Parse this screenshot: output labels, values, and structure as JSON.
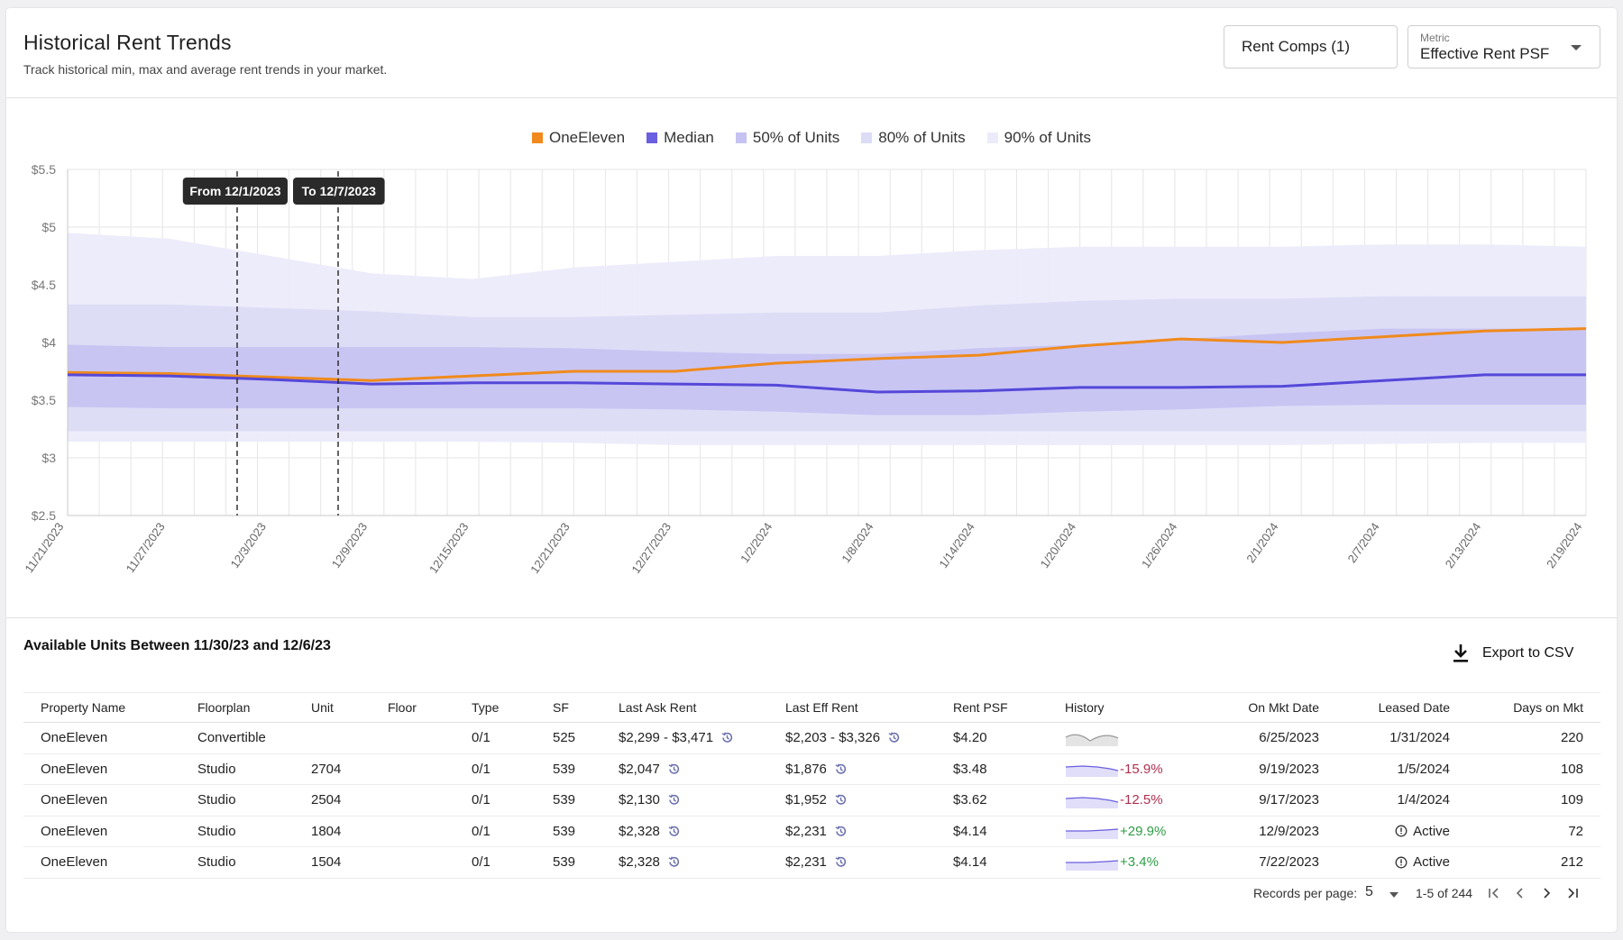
{
  "header": {
    "title": "Historical Rent Trends",
    "subtitle": "Track historical min, max and average rent trends in your market.",
    "rent_comps_label": "Rent Comps (1)",
    "metric_label": "Metric",
    "metric_value": "Effective Rent PSF"
  },
  "legend": [
    {
      "label": "OneEleven",
      "color": "#f08a1c"
    },
    {
      "label": "Median",
      "color": "#6a5fe0"
    },
    {
      "label": "50% of Units",
      "color": "#c6c3f2"
    },
    {
      "label": "80% of Units",
      "color": "#dddcf6"
    },
    {
      "label": "90% of Units",
      "color": "#ecebfb"
    }
  ],
  "markers": {
    "from_label": "From 12/1/2023",
    "to_label": "To 12/7/2023"
  },
  "chart_data": {
    "type": "area",
    "x_ticks": [
      "11/21/2023",
      "11/27/2023",
      "12/3/2023",
      "12/9/2023",
      "12/15/2023",
      "12/21/2023",
      "12/27/2023",
      "1/2/2024",
      "1/8/2024",
      "1/14/2024",
      "1/20/2024",
      "1/26/2024",
      "2/1/2024",
      "2/7/2024",
      "2/13/2024",
      "2/19/2024"
    ],
    "y_ticks": [
      "$5.5",
      "$5",
      "$4.5",
      "$4",
      "$3.5",
      "$3",
      "$2.5"
    ],
    "ylim": [
      2.5,
      5.5
    ],
    "x": [
      "11/21/2023",
      "11/27/2023",
      "12/3/2023",
      "12/9/2023",
      "12/15/2023",
      "12/21/2023",
      "12/27/2023",
      "1/2/2024",
      "1/8/2024",
      "1/14/2024",
      "1/20/2024",
      "1/26/2024",
      "2/1/2024",
      "2/7/2024",
      "2/13/2024",
      "2/19/2024"
    ],
    "series": [
      {
        "name": "OneEleven",
        "values": [
          3.74,
          3.73,
          3.7,
          3.67,
          3.71,
          3.75,
          3.75,
          3.82,
          3.86,
          3.89,
          3.97,
          4.03,
          4.0,
          4.05,
          4.1,
          4.12
        ]
      },
      {
        "name": "Median",
        "values": [
          3.72,
          3.71,
          3.68,
          3.64,
          3.65,
          3.65,
          3.64,
          3.63,
          3.57,
          3.58,
          3.61,
          3.61,
          3.62,
          3.67,
          3.72,
          3.72
        ]
      }
    ],
    "bands": [
      {
        "name": "90% of Units",
        "upper": [
          4.95,
          4.9,
          4.75,
          4.6,
          4.55,
          4.65,
          4.7,
          4.75,
          4.75,
          4.8,
          4.83,
          4.83,
          4.83,
          4.85,
          4.85,
          4.83
        ],
        "lower": [
          3.14,
          3.14,
          3.14,
          3.14,
          3.14,
          3.13,
          3.11,
          3.11,
          3.11,
          3.11,
          3.11,
          3.11,
          3.11,
          3.12,
          3.13,
          3.13
        ]
      },
      {
        "name": "80% of Units",
        "upper": [
          4.33,
          4.33,
          4.3,
          4.27,
          4.22,
          4.22,
          4.24,
          4.26,
          4.26,
          4.32,
          4.36,
          4.38,
          4.38,
          4.4,
          4.4,
          4.4
        ],
        "lower": [
          3.23,
          3.23,
          3.23,
          3.23,
          3.23,
          3.23,
          3.23,
          3.23,
          3.23,
          3.23,
          3.23,
          3.23,
          3.23,
          3.23,
          3.23,
          3.23
        ]
      },
      {
        "name": "50% of Units",
        "upper": [
          3.98,
          3.96,
          3.96,
          3.96,
          3.96,
          3.95,
          3.92,
          3.9,
          3.9,
          3.95,
          3.98,
          4.03,
          4.08,
          4.12,
          4.12,
          4.12
        ],
        "lower": [
          3.44,
          3.43,
          3.43,
          3.43,
          3.43,
          3.43,
          3.42,
          3.4,
          3.37,
          3.37,
          3.4,
          3.42,
          3.45,
          3.46,
          3.46,
          3.46
        ]
      }
    ],
    "grid": true
  },
  "table": {
    "title": "Available Units Between 11/30/23 and 12/6/23",
    "export_label": "Export to CSV",
    "columns": [
      "Property Name",
      "Floorplan",
      "Unit",
      "Floor",
      "Type",
      "SF",
      "Last Ask Rent",
      "Last Eff Rent",
      "Rent PSF",
      "History",
      "On Mkt Date",
      "Leased Date",
      "Days on Mkt"
    ],
    "rows": [
      {
        "property": "OneEleven",
        "floorplan": "Convertible",
        "unit": "",
        "floor": "",
        "type": "0/1",
        "sf": "525",
        "ask": "$2,299 - $3,471",
        "eff": "$2,203 - $3,326",
        "psf": "$4.20",
        "history_pct": "",
        "history_dir": "none",
        "on_mkt": "6/25/2023",
        "leased": "1/31/2024",
        "leased_active": false,
        "days": "220"
      },
      {
        "property": "OneEleven",
        "floorplan": "Studio",
        "unit": "2704",
        "floor": "",
        "type": "0/1",
        "sf": "539",
        "ask": "$2,047",
        "eff": "$1,876",
        "psf": "$3.48",
        "history_pct": "-15.9%",
        "history_dir": "neg",
        "on_mkt": "9/19/2023",
        "leased": "1/5/2024",
        "leased_active": false,
        "days": "108"
      },
      {
        "property": "OneEleven",
        "floorplan": "Studio",
        "unit": "2504",
        "floor": "",
        "type": "0/1",
        "sf": "539",
        "ask": "$2,130",
        "eff": "$1,952",
        "psf": "$3.62",
        "history_pct": "-12.5%",
        "history_dir": "neg",
        "on_mkt": "9/17/2023",
        "leased": "1/4/2024",
        "leased_active": false,
        "days": "109"
      },
      {
        "property": "OneEleven",
        "floorplan": "Studio",
        "unit": "1804",
        "floor": "",
        "type": "0/1",
        "sf": "539",
        "ask": "$2,328",
        "eff": "$2,231",
        "psf": "$4.14",
        "history_pct": "+29.9%",
        "history_dir": "pos",
        "on_mkt": "12/9/2023",
        "leased": "Active",
        "leased_active": true,
        "days": "72"
      },
      {
        "property": "OneEleven",
        "floorplan": "Studio",
        "unit": "1504",
        "floor": "",
        "type": "0/1",
        "sf": "539",
        "ask": "$2,328",
        "eff": "$2,231",
        "psf": "$4.14",
        "history_pct": "+3.4%",
        "history_dir": "pos",
        "on_mkt": "7/22/2023",
        "leased": "Active",
        "leased_active": true,
        "days": "212"
      }
    ]
  },
  "pagination": {
    "records_label": "Records per page:",
    "per_page": "5",
    "range": "1-5 of 244"
  }
}
